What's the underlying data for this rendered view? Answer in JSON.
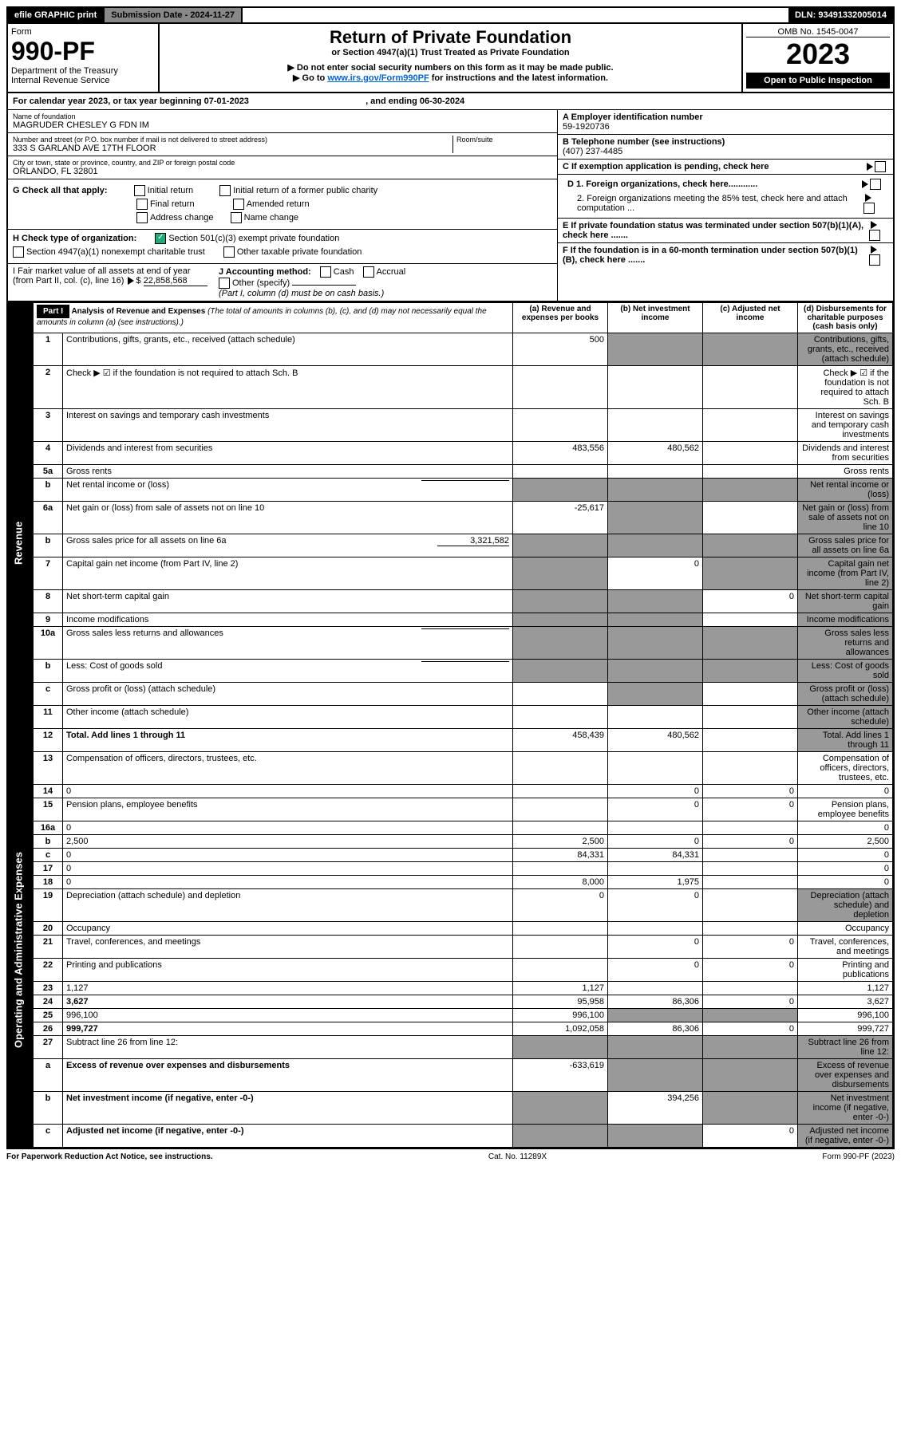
{
  "topbar": {
    "efile": "efile GRAPHIC print",
    "subdate_label": "Submission Date - 2024-11-27",
    "dln": "DLN: 93491332005014"
  },
  "header": {
    "form_word": "Form",
    "form_no": "990-PF",
    "dept": "Department of the Treasury",
    "irs": "Internal Revenue Service",
    "title": "Return of Private Foundation",
    "subtitle": "or Section 4947(a)(1) Trust Treated as Private Foundation",
    "note1": "▶ Do not enter social security numbers on this form as it may be made public.",
    "note2_a": "▶ Go to ",
    "note2_link": "www.irs.gov/Form990PF",
    "note2_b": " for instructions and the latest information.",
    "omb": "OMB No. 1545-0047",
    "year": "2023",
    "otp": "Open to Public Inspection"
  },
  "cal": {
    "text_a": "For calendar year 2023, or tax year beginning ",
    "begin": "07-01-2023",
    "text_b": " , and ending ",
    "end": "06-30-2024"
  },
  "idblock": {
    "name_lbl": "Name of foundation",
    "name": "MAGRUDER CHESLEY G FDN IM",
    "addr_lbl": "Number and street (or P.O. box number if mail is not delivered to street address)",
    "addr": "333 S GARLAND AVE 17TH FLOOR",
    "room_lbl": "Room/suite",
    "city_lbl": "City or town, state or province, country, and ZIP or foreign postal code",
    "city": "ORLANDO, FL  32801",
    "ein_lbl": "A Employer identification number",
    "ein": "59-1920736",
    "phone_lbl": "B Telephone number (see instructions)",
    "phone": "(407) 237-4485",
    "c_lbl": "C If exemption application is pending, check here",
    "d1": "D 1. Foreign organizations, check here............",
    "d2": "2. Foreign organizations meeting the 85% test, check here and attach computation ...",
    "e": "E  If private foundation status was terminated under section 507(b)(1)(A), check here .......",
    "f": "F  If the foundation is in a 60-month termination under section 507(b)(1)(B), check here .......",
    "g_lbl": "G Check all that apply:",
    "g_opts": [
      "Initial return",
      "Final return",
      "Address change",
      "Initial return of a former public charity",
      "Amended return",
      "Name change"
    ],
    "h_lbl": "H Check type of organization:",
    "h1": "Section 501(c)(3) exempt private foundation",
    "h2": "Section 4947(a)(1) nonexempt charitable trust",
    "h3": "Other taxable private foundation",
    "i_lbl": "I Fair market value of all assets at end of year (from Part II, col. (c), line 16)",
    "i_val": "22,858,568",
    "j_lbl": "J Accounting method:",
    "j_opts": [
      "Cash",
      "Accrual"
    ],
    "j_other": "Other (specify)",
    "j_note": "(Part I, column (d) must be on cash basis.)"
  },
  "part1": {
    "label": "Part I",
    "title": "Analysis of Revenue and Expenses",
    "title_note": "(The total of amounts in columns (b), (c), and (d) may not necessarily equal the amounts in column (a) (see instructions).)",
    "cols": {
      "a": "(a) Revenue and expenses per books",
      "b": "(b) Net investment income",
      "c": "(c) Adjusted net income",
      "d": "(d) Disbursements for charitable purposes (cash basis only)"
    },
    "side_rev": "Revenue",
    "side_exp": "Operating and Administrative Expenses",
    "rows": [
      {
        "n": "1",
        "d": "Contributions, gifts, grants, etc., received (attach schedule)",
        "a": "500",
        "b_shade": true,
        "c_shade": true,
        "d_shade": true
      },
      {
        "n": "2",
        "d": "Check ▶ ☑ if the foundation is not required to attach Sch. B",
        "dots": true,
        "no_cells": true
      },
      {
        "n": "3",
        "d": "Interest on savings and temporary cash investments"
      },
      {
        "n": "4",
        "d": "Dividends and interest from securities",
        "dots": true,
        "a": "483,556",
        "b": "480,562"
      },
      {
        "n": "5a",
        "d": "Gross rents",
        "dots": true
      },
      {
        "n": "b",
        "d": "Net rental income or (loss)",
        "inline_blank": true,
        "b_shade": true,
        "c_shade": true,
        "d_shade": true,
        "a_shade": true
      },
      {
        "n": "6a",
        "d": "Net gain or (loss) from sale of assets not on line 10",
        "a": "-25,617",
        "b_shade": true,
        "d_shade": true
      },
      {
        "n": "b",
        "d": "Gross sales price for all assets on line 6a",
        "inline_val": "3,321,582",
        "a_shade": true,
        "b_shade": true,
        "c_shade": true,
        "d_shade": true
      },
      {
        "n": "7",
        "d": "Capital gain net income (from Part IV, line 2)",
        "dots": true,
        "a_shade": true,
        "b": "0",
        "c_shade": true,
        "d_shade": true
      },
      {
        "n": "8",
        "d": "Net short-term capital gain",
        "dots": true,
        "a_shade": true,
        "b_shade": true,
        "c": "0",
        "d_shade": true
      },
      {
        "n": "9",
        "d": "Income modifications",
        "dots": true,
        "a_shade": true,
        "b_shade": true,
        "d_shade": true
      },
      {
        "n": "10a",
        "d": "Gross sales less returns and allowances",
        "inline_blank": true,
        "a_shade": true,
        "b_shade": true,
        "c_shade": true,
        "d_shade": true
      },
      {
        "n": "b",
        "d": "Less: Cost of goods sold",
        "dots": true,
        "inline_blank": true,
        "a_shade": true,
        "b_shade": true,
        "c_shade": true,
        "d_shade": true
      },
      {
        "n": "c",
        "d": "Gross profit or (loss) (attach schedule)",
        "dots": true,
        "a_shade": false,
        "b_shade": true,
        "d_shade": true
      },
      {
        "n": "11",
        "d": "Other income (attach schedule)",
        "dots": true,
        "d_shade": true
      },
      {
        "n": "12",
        "d": "Total. Add lines 1 through 11",
        "bold": true,
        "dots": true,
        "a": "458,439",
        "b": "480,562",
        "d_shade": true
      },
      {
        "n": "13",
        "d": "Compensation of officers, directors, trustees, etc."
      },
      {
        "n": "14",
        "d": "0",
        "dots": true,
        "b": "0",
        "c": "0"
      },
      {
        "n": "15",
        "d": "Pension plans, employee benefits",
        "dots": true,
        "b": "0",
        "c": "0"
      },
      {
        "n": "16a",
        "d": "0",
        "dots": true
      },
      {
        "n": "b",
        "d": "2,500",
        "dots": true,
        "a": "2,500",
        "b": "0",
        "c": "0"
      },
      {
        "n": "c",
        "d": "0",
        "dots": true,
        "a": "84,331",
        "b": "84,331"
      },
      {
        "n": "17",
        "d": "0",
        "dots": true
      },
      {
        "n": "18",
        "d": "0",
        "dots": true,
        "a": "8,000",
        "b": "1,975"
      },
      {
        "n": "19",
        "d": "Depreciation (attach schedule) and depletion",
        "dots": true,
        "a": "0",
        "b": "0",
        "d_shade": true
      },
      {
        "n": "20",
        "d": "Occupancy",
        "dots": true
      },
      {
        "n": "21",
        "d": "Travel, conferences, and meetings",
        "dots": true,
        "b": "0",
        "c": "0"
      },
      {
        "n": "22",
        "d": "Printing and publications",
        "dots": true,
        "b": "0",
        "c": "0"
      },
      {
        "n": "23",
        "d": "1,127",
        "dots": true,
        "a": "1,127"
      },
      {
        "n": "24",
        "d": "3,627",
        "bold": true,
        "dots": true,
        "a": "95,958",
        "b": "86,306",
        "c": "0"
      },
      {
        "n": "25",
        "d": "996,100",
        "dots": true,
        "a": "996,100",
        "b_shade": true,
        "c_shade": true
      },
      {
        "n": "26",
        "d": "999,727",
        "bold": true,
        "a": "1,092,058",
        "b": "86,306",
        "c": "0"
      },
      {
        "n": "27",
        "d": "Subtract line 26 from line 12:",
        "a_shade": true,
        "b_shade": true,
        "c_shade": true,
        "d_shade": true
      },
      {
        "n": "a",
        "d": "Excess of revenue over expenses and disbursements",
        "bold": true,
        "a": "-633,619",
        "b_shade": true,
        "c_shade": true,
        "d_shade": true
      },
      {
        "n": "b",
        "d": "Net investment income (if negative, enter -0-)",
        "bold": true,
        "a_shade": true,
        "b": "394,256",
        "c_shade": true,
        "d_shade": true
      },
      {
        "n": "c",
        "d": "Adjusted net income (if negative, enter -0-)",
        "bold": true,
        "dots": true,
        "a_shade": true,
        "b_shade": true,
        "c": "0",
        "d_shade": true
      }
    ]
  },
  "footer": {
    "left": "For Paperwork Reduction Act Notice, see instructions.",
    "mid": "Cat. No. 11289X",
    "right": "Form 990-PF (2023)"
  }
}
